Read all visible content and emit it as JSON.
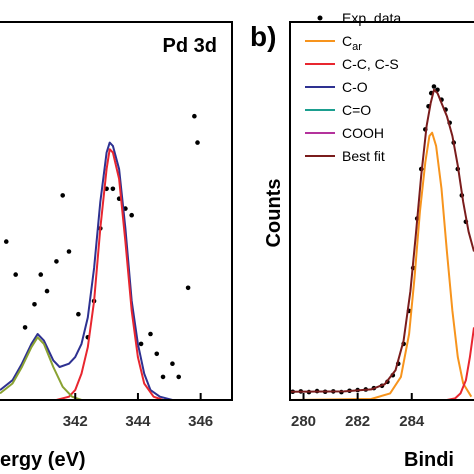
{
  "chart_data": [
    {
      "type": "scatter",
      "panel_title": "Pd 3d",
      "xlabel": "ergy (eV)",
      "x_ticks": [
        "342",
        "344",
        "346"
      ],
      "xlim": [
        339.6,
        347.0
      ],
      "ylim": [
        0,
        100
      ],
      "series": [
        {
          "kind": "points",
          "color": "#000000",
          "points": [
            [
              339.8,
              48
            ],
            [
              340.1,
              38
            ],
            [
              340.4,
              22
            ],
            [
              340.7,
              29
            ],
            [
              340.9,
              38
            ],
            [
              341.1,
              33
            ],
            [
              341.4,
              42
            ],
            [
              341.6,
              62
            ],
            [
              341.8,
              45
            ],
            [
              342.1,
              26
            ],
            [
              342.4,
              19
            ],
            [
              342.6,
              30
            ],
            [
              342.8,
              52
            ],
            [
              343.0,
              64
            ],
            [
              343.2,
              64
            ],
            [
              343.4,
              61
            ],
            [
              343.6,
              58
            ],
            [
              343.8,
              56
            ],
            [
              344.1,
              17
            ],
            [
              344.4,
              20
            ],
            [
              344.6,
              14
            ],
            [
              344.8,
              7
            ],
            [
              345.1,
              11
            ],
            [
              345.3,
              7
            ],
            [
              345.6,
              34
            ],
            [
              345.8,
              86
            ],
            [
              345.9,
              78
            ]
          ]
        },
        {
          "kind": "line",
          "color": "#2E3191",
          "points": [
            [
              339.6,
              3
            ],
            [
              340.0,
              6
            ],
            [
              340.3,
              11
            ],
            [
              340.6,
              17
            ],
            [
              340.8,
              20
            ],
            [
              341.0,
              18
            ],
            [
              341.3,
              12
            ],
            [
              341.5,
              10
            ],
            [
              341.8,
              11
            ],
            [
              342.0,
              13
            ],
            [
              342.2,
              17
            ],
            [
              342.4,
              25
            ],
            [
              342.6,
              40
            ],
            [
              342.8,
              60
            ],
            [
              343.0,
              75
            ],
            [
              343.1,
              78
            ],
            [
              343.2,
              77
            ],
            [
              343.4,
              70
            ],
            [
              343.6,
              52
            ],
            [
              343.8,
              30
            ],
            [
              344.0,
              17
            ],
            [
              344.2,
              8
            ],
            [
              344.4,
              3
            ],
            [
              344.7,
              1
            ],
            [
              345.1,
              0
            ]
          ]
        },
        {
          "kind": "line",
          "color": "#E8262F",
          "points": [
            [
              339.6,
              0
            ],
            [
              341.4,
              0
            ],
            [
              341.8,
              1
            ],
            [
              342.0,
              3
            ],
            [
              342.2,
              8
            ],
            [
              342.4,
              16
            ],
            [
              342.6,
              30
            ],
            [
              342.8,
              52
            ],
            [
              343.0,
              70
            ],
            [
              343.1,
              76
            ],
            [
              343.2,
              75
            ],
            [
              343.4,
              67
            ],
            [
              343.6,
              48
            ],
            [
              343.8,
              27
            ],
            [
              344.0,
              13
            ],
            [
              344.2,
              5
            ],
            [
              344.5,
              1
            ],
            [
              344.8,
              0
            ]
          ]
        },
        {
          "kind": "line",
          "color": "#8AA232",
          "points": [
            [
              339.6,
              2
            ],
            [
              340.0,
              5
            ],
            [
              340.3,
              10
            ],
            [
              340.6,
              16
            ],
            [
              340.8,
              19
            ],
            [
              341.0,
              17
            ],
            [
              341.3,
              10
            ],
            [
              341.6,
              4
            ],
            [
              341.9,
              1
            ],
            [
              342.2,
              0
            ]
          ]
        }
      ]
    },
    {
      "type": "line",
      "panel_letter": "b)",
      "ylabel": "Counts",
      "xlabel": "Bindi",
      "x_ticks": [
        "280",
        "282",
        "284"
      ],
      "xlim": [
        279.5,
        286.3
      ],
      "ylim": [
        0,
        100
      ],
      "legend": [
        {
          "label": "Exp. data",
          "kind": "dot",
          "color": "#000000"
        },
        {
          "label": "C",
          "sub": "ar",
          "kind": "line",
          "color": "#F7941D"
        },
        {
          "label": "C-C, C-S",
          "kind": "line",
          "color": "#E8262F"
        },
        {
          "label": "C-O",
          "kind": "line",
          "color": "#2E3191"
        },
        {
          "label": "C=O",
          "kind": "line",
          "color": "#1B9E8F"
        },
        {
          "label": "COOH",
          "kind": "line",
          "color": "#B4329C"
        },
        {
          "label": "Best fit",
          "kind": "line",
          "color": "#7A1C1C"
        }
      ],
      "series": [
        {
          "kind": "points",
          "color": "#000000",
          "points": [
            [
              279.6,
              2.5
            ],
            [
              279.9,
              2.6
            ],
            [
              280.2,
              2.4
            ],
            [
              280.5,
              2.7
            ],
            [
              280.8,
              2.5
            ],
            [
              281.1,
              2.6
            ],
            [
              281.4,
              2.4
            ],
            [
              281.7,
              2.8
            ],
            [
              282.0,
              3.0
            ],
            [
              282.3,
              3.2
            ],
            [
              282.6,
              3.6
            ],
            [
              282.9,
              4.3
            ],
            [
              283.1,
              5.5
            ],
            [
              283.3,
              7.5
            ],
            [
              283.5,
              11
            ],
            [
              283.7,
              17
            ],
            [
              283.9,
              27
            ],
            [
              284.05,
              40
            ],
            [
              284.2,
              55
            ],
            [
              284.35,
              70
            ],
            [
              284.5,
              82
            ],
            [
              284.62,
              89
            ],
            [
              284.72,
              93
            ],
            [
              284.82,
              95
            ],
            [
              284.95,
              94
            ],
            [
              285.1,
              91
            ],
            [
              285.25,
              88
            ],
            [
              285.4,
              84
            ],
            [
              285.55,
              78
            ],
            [
              285.7,
              70
            ],
            [
              285.85,
              62
            ],
            [
              286.0,
              54
            ]
          ]
        },
        {
          "kind": "line",
          "color": "#F7941D",
          "points": [
            [
              279.5,
              0
            ],
            [
              282.5,
              0.3
            ],
            [
              283.2,
              2
            ],
            [
              283.6,
              7
            ],
            [
              283.9,
              20
            ],
            [
              284.1,
              37
            ],
            [
              284.3,
              57
            ],
            [
              284.5,
              72
            ],
            [
              284.65,
              80
            ],
            [
              284.75,
              81
            ],
            [
              284.9,
              77
            ],
            [
              285.1,
              64
            ],
            [
              285.3,
              45
            ],
            [
              285.5,
              27
            ],
            [
              285.7,
              13
            ],
            [
              285.9,
              5
            ],
            [
              286.2,
              1
            ]
          ]
        },
        {
          "kind": "line",
          "color": "#B4329C",
          "points": [
            [
              279.5,
              0
            ],
            [
              286.3,
              0
            ]
          ]
        },
        {
          "kind": "line",
          "color": "#E8262F",
          "points": [
            [
              279.5,
              0
            ],
            [
              285.3,
              0
            ],
            [
              285.6,
              0.5
            ],
            [
              285.8,
              2
            ],
            [
              286.0,
              6
            ],
            [
              286.15,
              13
            ],
            [
              286.3,
              22
            ]
          ]
        },
        {
          "kind": "line",
          "color": "#7A1C1C",
          "points": [
            [
              279.5,
              2.5
            ],
            [
              281.5,
              2.6
            ],
            [
              282.5,
              3.2
            ],
            [
              283.0,
              4.8
            ],
            [
              283.4,
              9
            ],
            [
              283.7,
              18
            ],
            [
              283.95,
              33
            ],
            [
              284.15,
              50
            ],
            [
              284.35,
              68
            ],
            [
              284.55,
              83
            ],
            [
              284.7,
              90
            ],
            [
              284.82,
              94
            ],
            [
              284.95,
              93
            ],
            [
              285.1,
              90
            ],
            [
              285.3,
              86
            ],
            [
              285.5,
              80
            ],
            [
              285.7,
              71
            ],
            [
              285.9,
              60
            ],
            [
              286.1,
              51
            ],
            [
              286.3,
              45
            ]
          ]
        }
      ]
    }
  ]
}
